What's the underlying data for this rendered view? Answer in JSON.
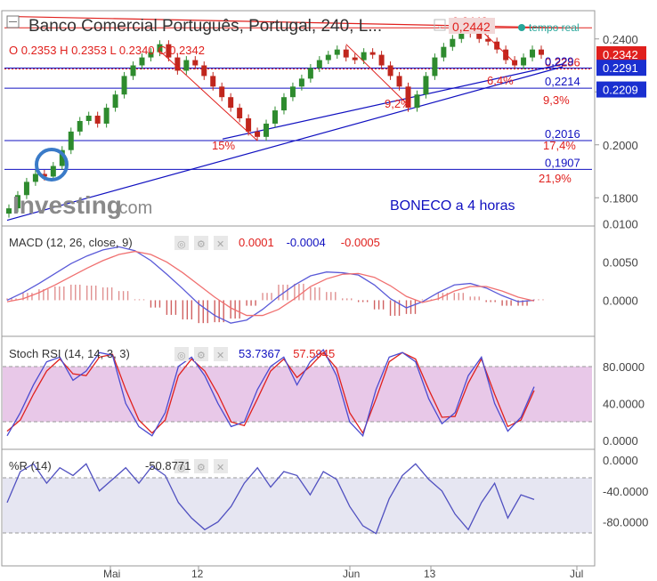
{
  "colors": {
    "red": "#e0201d",
    "blue": "#1010c0",
    "candle_up": "#2e8b2e",
    "candle_down": "#c0261d",
    "macd_line": "#5a5ad8",
    "signal_line": "#f07070",
    "stoch_band": "#e8c8e8",
    "wr_band": "#e6e6f2",
    "badge_blue": "#1a2fd0",
    "badge_red": "#e0201d"
  },
  "header": {
    "title": "Banco Comercial Português, Portugal, 240, L...",
    "live_label": "tempo real",
    "last_top": "0,2442",
    "ohlc": "O 0.2353  H 0.2353  L 0.2340  C 0.2342"
  },
  "logo": {
    "brand": "Investing",
    "suffix": ".com"
  },
  "annotation_title": "BONECO a 4 horas",
  "chart_data": [
    {
      "type": "candlestick",
      "title": "Banco Comercial Português, Portugal, 240",
      "ylim": [
        0.17,
        0.25
      ],
      "y_ticks": [
        "0.2400",
        "0.2200",
        "0.2000",
        "0.1800"
      ],
      "x_ticks": [
        "Mai",
        "12",
        "Jun",
        "13",
        "Jul"
      ],
      "price_badges": [
        {
          "label": "0.2342",
          "value": 0.2342,
          "color": "red"
        },
        {
          "label": "0.2291",
          "value": 0.2291,
          "color": "blue"
        },
        {
          "label": "0.2209",
          "value": 0.2209,
          "color": "blue"
        }
      ],
      "horizontal_levels": [
        {
          "label": "0,2442",
          "value": 0.2442,
          "color": "red"
        },
        {
          "label": "0,2286",
          "value": 0.2286,
          "color": "red"
        },
        {
          "label": "0,229",
          "value": 0.229,
          "color": "blue"
        },
        {
          "label": "0,2214",
          "value": 0.2214,
          "color": "blue"
        },
        {
          "label": "0,2016",
          "value": 0.2016,
          "color": "blue"
        },
        {
          "label": "0,1907",
          "value": 0.1907,
          "color": "blue"
        }
      ],
      "percent_labels": [
        "15%",
        "9,2%",
        "6,4%",
        "9,3%",
        "17,4%",
        "21,9%"
      ],
      "close_series": [
        0.176,
        0.181,
        0.186,
        0.189,
        0.188,
        0.192,
        0.198,
        0.205,
        0.209,
        0.211,
        0.208,
        0.214,
        0.219,
        0.226,
        0.23,
        0.233,
        0.235,
        0.238,
        0.233,
        0.228,
        0.232,
        0.23,
        0.226,
        0.222,
        0.218,
        0.214,
        0.21,
        0.205,
        0.203,
        0.208,
        0.213,
        0.218,
        0.222,
        0.225,
        0.229,
        0.232,
        0.234,
        0.236,
        0.233,
        0.232,
        0.235,
        0.234,
        0.23,
        0.226,
        0.222,
        0.214,
        0.219,
        0.226,
        0.233,
        0.237,
        0.24,
        0.243,
        0.242,
        0.24,
        0.239,
        0.236,
        0.232,
        0.23,
        0.233,
        0.236,
        0.234
      ]
    },
    {
      "type": "line",
      "title": "MACD (12, 26, close, 9)",
      "values_text": [
        "0.0001",
        "-0.0004",
        "-0.0005"
      ],
      "ylim": [
        -0.0045,
        0.0095
      ],
      "y_ticks": [
        "0.0100",
        "0.0050",
        "0.0000"
      ],
      "series": [
        {
          "values": [
            0.0,
            0.001,
            0.0022,
            0.0035,
            0.0048,
            0.0058,
            0.0066,
            0.007,
            0.0065,
            0.0052,
            0.0034,
            0.0015,
            -0.0005,
            -0.002,
            -0.003,
            -0.0026,
            -0.0012,
            0.0005,
            0.002,
            0.0032,
            0.0037,
            0.0036,
            0.0033,
            0.002,
            0.0002,
            -0.001,
            -0.0002,
            0.001,
            0.002,
            0.0022,
            0.0016,
            0.0006,
            -0.0002,
            0.0
          ]
        },
        {
          "values": [
            -0.0002,
            0.0002,
            0.001,
            0.002,
            0.0031,
            0.0042,
            0.0052,
            0.006,
            0.0064,
            0.006,
            0.005,
            0.0036,
            0.002,
            0.0004,
            -0.001,
            -0.002,
            -0.002,
            -0.0012,
            0.0002,
            0.0018,
            0.0028,
            0.0034,
            0.0035,
            0.003,
            0.0019,
            0.0005,
            -0.0003,
            0.0002,
            0.0012,
            0.0018,
            0.0018,
            0.0012,
            0.0004,
            -0.0001
          ]
        }
      ]
    },
    {
      "type": "line",
      "title": "Stoch RSI (14, 14, 3, 3)",
      "values_text": [
        "53.7367",
        "57.5945"
      ],
      "ylim": [
        0,
        100
      ],
      "y_ticks": [
        "80.0000",
        "40.0000",
        "0.0000"
      ],
      "series": [
        {
          "values": [
            5,
            30,
            60,
            85,
            90,
            65,
            75,
            95,
            92,
            40,
            15,
            5,
            30,
            80,
            90,
            70,
            40,
            15,
            20,
            55,
            80,
            90,
            60,
            85,
            98,
            70,
            20,
            5,
            55,
            90,
            95,
            85,
            45,
            18,
            30,
            70,
            90,
            40,
            10,
            25,
            58
          ]
        },
        {
          "values": [
            10,
            22,
            50,
            75,
            88,
            72,
            70,
            90,
            93,
            55,
            22,
            8,
            22,
            70,
            88,
            75,
            50,
            20,
            16,
            45,
            75,
            88,
            68,
            80,
            95,
            78,
            30,
            8,
            45,
            85,
            95,
            88,
            55,
            25,
            26,
            62,
            88,
            50,
            15,
            22,
            54
          ]
        }
      ]
    },
    {
      "type": "line",
      "title": "%R (14)",
      "values_text": [
        "-50.8771"
      ],
      "ylim": [
        -100,
        0
      ],
      "y_ticks": [
        "0.0000",
        "-40.0000",
        "-80.0000"
      ],
      "series": [
        {
          "values": [
            -55,
            -15,
            -5,
            -30,
            -10,
            -20,
            -5,
            -40,
            -25,
            -10,
            -30,
            -8,
            -20,
            -55,
            -75,
            -90,
            -80,
            -60,
            -30,
            -10,
            -35,
            -15,
            -20,
            -45,
            -15,
            -25,
            -60,
            -85,
            -95,
            -50,
            -20,
            -5,
            -25,
            -40,
            -70,
            -90,
            -55,
            -30,
            -75,
            -45,
            -51
          ]
        }
      ]
    }
  ]
}
